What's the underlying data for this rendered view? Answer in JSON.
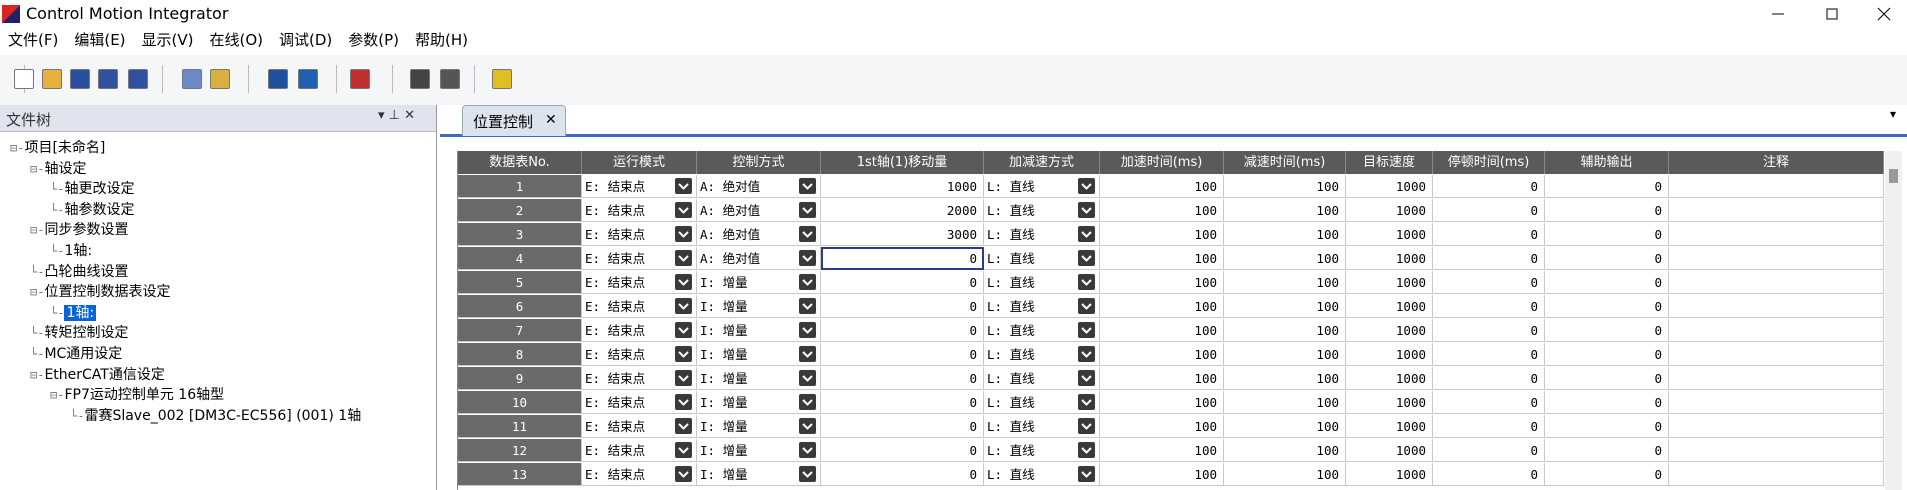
{
  "window": {
    "title": "Control Motion Integrator"
  },
  "menu": [
    "文件(F)",
    "编辑(E)",
    "显示(V)",
    "在线(O)",
    "调试(D)",
    "参数(P)",
    "帮助(H)"
  ],
  "panel": {
    "title": "文件树"
  },
  "tree": [
    {
      "label": "项目[未命名]",
      "level": 0
    },
    {
      "label": "轴设定",
      "level": 1
    },
    {
      "label": "轴更改设定",
      "level": 2
    },
    {
      "label": "轴参数设定",
      "level": 2
    },
    {
      "label": "同步参数设置",
      "level": 1
    },
    {
      "label": "1轴:",
      "level": 2
    },
    {
      "label": "凸轮曲线设置",
      "level": 1
    },
    {
      "label": "位置控制数据表设定",
      "level": 1
    },
    {
      "label": "1轴:",
      "level": 2
    },
    {
      "label": "转矩控制设定",
      "level": 1
    },
    {
      "label": "MC通用设定",
      "level": 1
    },
    {
      "label": "EtherCAT通信设定",
      "level": 1
    },
    {
      "label": "FP7运动控制单元 16轴型",
      "level": 2
    },
    {
      "label": "雷赛Slave_002 [DM3C-EC556] (001) 1轴",
      "level": 3
    }
  ],
  "tab": {
    "title": "位置控制"
  },
  "table": {
    "headers": [
      "数据表No.",
      "运行模式",
      "控制方式",
      "1st轴(1)移动量",
      "加减速方式",
      "加速时间(ms)",
      "减速时间(ms)",
      "目标速度",
      "停顿时间(ms)",
      "辅助输出",
      "注释"
    ],
    "rows": [
      [
        1,
        "E: 结束点",
        "A: 绝对值",
        1000,
        "L: 直线",
        100,
        100,
        1000,
        0,
        0
      ],
      [
        2,
        "E: 结束点",
        "A: 绝对值",
        2000,
        "L: 直线",
        100,
        100,
        1000,
        0,
        0
      ],
      [
        3,
        "E: 结束点",
        "A: 绝对值",
        3000,
        "L: 直线",
        100,
        100,
        1000,
        0,
        0
      ],
      [
        4,
        "E: 结束点",
        "A: 绝对值",
        0,
        "L: 直线",
        100,
        100,
        1000,
        0,
        0
      ],
      [
        5,
        "E: 结束点",
        "I: 增量",
        0,
        "L: 直线",
        100,
        100,
        1000,
        0,
        0
      ],
      [
        6,
        "E: 结束点",
        "I: 增量",
        0,
        "L: 直线",
        100,
        100,
        1000,
        0,
        0
      ],
      [
        7,
        "E: 结束点",
        "I: 增量",
        0,
        "L: 直线",
        100,
        100,
        1000,
        0,
        0
      ],
      [
        8,
        "E: 结束点",
        "I: 增量",
        0,
        "L: 直线",
        100,
        100,
        1000,
        0,
        0
      ],
      [
        9,
        "E: 结束点",
        "I: 增量",
        0,
        "L: 直线",
        100,
        100,
        1000,
        0,
        0
      ],
      [
        10,
        "E: 结束点",
        "I: 增量",
        0,
        "L: 直线",
        100,
        100,
        1000,
        0,
        0
      ],
      [
        11,
        "E: 结束点",
        "I: 增量",
        0,
        "L: 直线",
        100,
        100,
        1000,
        0,
        0
      ],
      [
        12,
        "E: 结束点",
        "I: 增量",
        0,
        "L: 直线",
        100,
        100,
        1000,
        0,
        0
      ],
      [
        13,
        "E: 结束点",
        "I: 增量",
        0,
        "L: 直线",
        100,
        100,
        1000,
        0,
        0
      ]
    ]
  }
}
